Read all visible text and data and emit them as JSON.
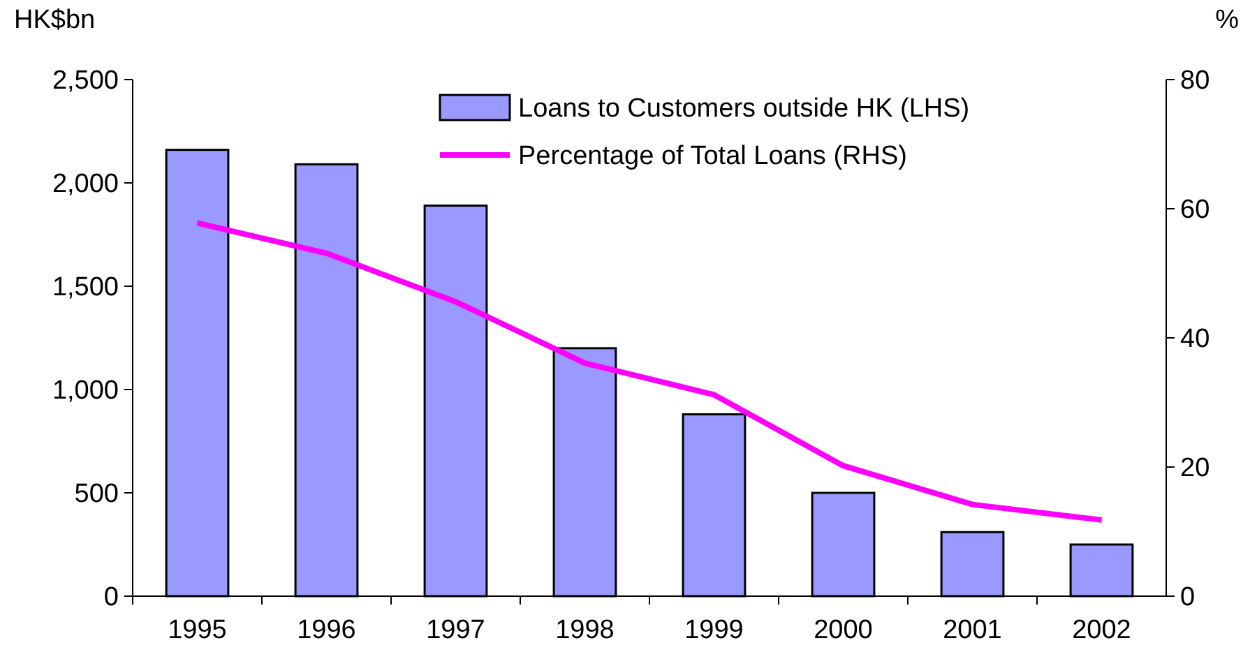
{
  "chart_data": {
    "type": "bar",
    "ylabel": "HK$bn",
    "y2label": "%",
    "categories": [
      "1995",
      "1996",
      "1997",
      "1998",
      "1999",
      "2000",
      "2001",
      "2002"
    ],
    "series": [
      {
        "name": "Loans to Customers outside HK (LHS)",
        "color": "#9999ff",
        "values": [
          2160,
          2090,
          1890,
          1200,
          880,
          500,
          310,
          250
        ]
      },
      {
        "name": "Percentage of Total Loans (RHS)",
        "type": "line",
        "axis": "y2",
        "color": "#ff00ff",
        "values": [
          57.8,
          53.1,
          45.6,
          36.1,
          31.2,
          20.2,
          14.2,
          11.8
        ]
      }
    ],
    "ylim": [
      0,
      2500
    ],
    "yticks": [
      {
        "value": 0,
        "label": "0"
      },
      {
        "value": 500,
        "label": "500"
      },
      {
        "value": 1000,
        "label": "1,000"
      },
      {
        "value": 1500,
        "label": "1,500"
      },
      {
        "value": 2000,
        "label": "2,000"
      },
      {
        "value": 2500,
        "label": "2,500"
      }
    ],
    "y2lim": [
      0,
      80
    ],
    "y2ticks": [
      0,
      20,
      40,
      60,
      80
    ],
    "legend": "top right",
    "marker": "none",
    "line_style": "solid"
  }
}
